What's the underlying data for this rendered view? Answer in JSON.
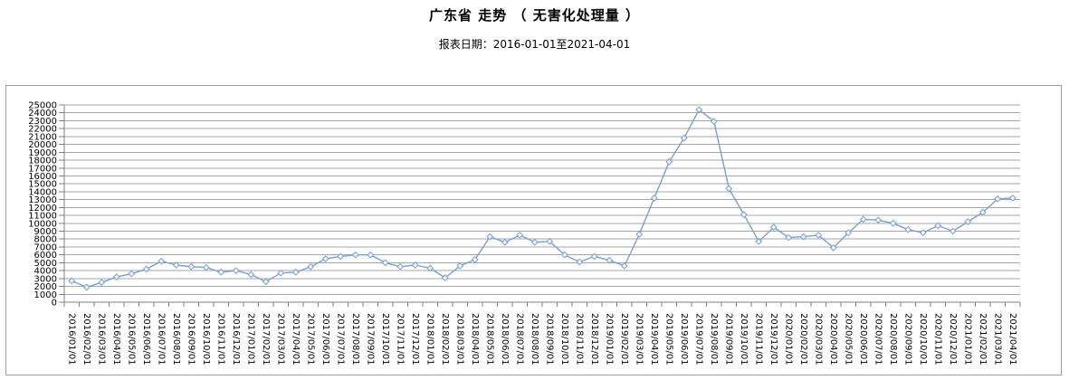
{
  "header": {
    "title": "广东省 走势 （ 无害化处理量 ）",
    "subtitle": "报表日期：2016-01-01至2021-04-01"
  },
  "colors": {
    "line": "#7b9fcd",
    "marker_fill": "#f2f6fb",
    "gridline": "#a6a6a6",
    "axis": "#808080",
    "frame_border": "#a0a0a0",
    "text": "#000000"
  },
  "chart_data": {
    "type": "line",
    "title": "广东省 走势 （ 无害化处理量 ）",
    "subtitle": "报表日期：2016-01-01至2021-04-01",
    "series_name": "无害化处理量",
    "date_range": "2016-01-01至2021-04-01",
    "xlabel": "",
    "ylabel": "",
    "ylim": [
      0,
      25000
    ],
    "ytick_step": 1000,
    "grid": true,
    "legend": "none",
    "marker": "diamond",
    "x": [
      "2016/01/01",
      "2016/02/01",
      "2016/03/01",
      "2016/04/01",
      "2016/05/01",
      "2016/06/01",
      "2016/07/01",
      "2016/08/01",
      "2016/09/01",
      "2016/10/01",
      "2016/11/01",
      "2016/12/01",
      "2017/01/01",
      "2017/02/01",
      "2017/03/01",
      "2017/04/01",
      "2017/05/01",
      "2017/06/01",
      "2017/07/01",
      "2017/08/01",
      "2017/09/01",
      "2017/10/01",
      "2017/11/01",
      "2017/12/01",
      "2018/01/01",
      "2018/02/01",
      "2018/03/01",
      "2018/04/01",
      "2018/05/01",
      "2018/06/01",
      "2018/07/01",
      "2018/08/01",
      "2018/09/01",
      "2018/10/01",
      "2018/11/01",
      "2018/12/01",
      "2019/01/01",
      "2019/02/01",
      "2019/03/01",
      "2019/04/01",
      "2019/05/01",
      "2019/06/01",
      "2019/07/01",
      "2019/08/01",
      "2019/09/01",
      "2019/10/01",
      "2019/11/01",
      "2019/12/01",
      "2020/01/01",
      "2020/02/01",
      "2020/03/01",
      "2020/04/01",
      "2020/05/01",
      "2020/06/01",
      "2020/07/01",
      "2020/08/01",
      "2020/09/01",
      "2020/10/01",
      "2020/11/01",
      "2020/12/01",
      "2021/01/01",
      "2021/02/01",
      "2021/03/01",
      "2021/04/01"
    ],
    "values": [
      2700,
      1900,
      2500,
      3200,
      3600,
      4200,
      5200,
      4700,
      4500,
      4400,
      3800,
      4000,
      3500,
      2600,
      3700,
      3800,
      4500,
      5500,
      5800,
      6000,
      6000,
      5000,
      4500,
      4700,
      4300,
      3100,
      4600,
      5400,
      8300,
      7600,
      8500,
      7600,
      7700,
      6000,
      5100,
      5800,
      5300,
      4600,
      8600,
      13200,
      17800,
      20800,
      24400,
      22900,
      14400,
      11100,
      7700,
      9500,
      8200,
      8300,
      8500,
      6900,
      8800,
      10500,
      10400,
      10000,
      9200,
      8800,
      9700,
      9000,
      10200,
      11400,
      13100,
      13200
    ]
  }
}
